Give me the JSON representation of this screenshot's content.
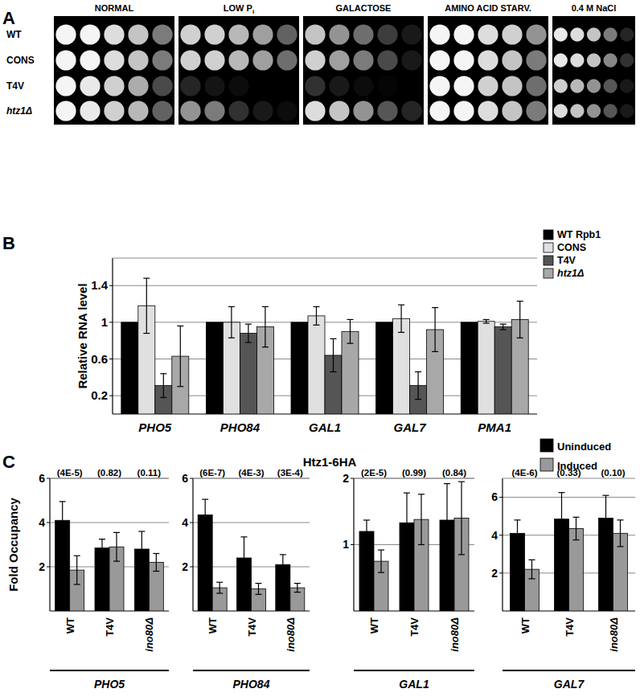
{
  "spot_assay": {
    "panel_label": "A",
    "conditions": [
      {
        "title": "NORMAL"
      },
      {
        "title": "LOW P",
        "subscript": "i"
      },
      {
        "title": "GALACTOSE"
      },
      {
        "title": "AMINO ACID STARV."
      },
      {
        "title": "0.4 M NaCl"
      }
    ],
    "strains": [
      "WT",
      "CONS",
      "T4V",
      "htz1Δ"
    ],
    "growth": [
      [
        [
          1,
          1,
          0.9,
          0.8,
          0.5
        ],
        [
          1,
          1,
          0.9,
          0.8,
          0.5
        ],
        [
          1,
          0.95,
          0.85,
          0.7,
          0.3
        ],
        [
          1,
          0.95,
          0.85,
          0.75,
          0.4
        ]
      ],
      [
        [
          0.85,
          0.85,
          0.75,
          0.65,
          0.4
        ],
        [
          0.85,
          0.85,
          0.75,
          0.65,
          0.45
        ],
        [
          0.15,
          0.08,
          0.05,
          0,
          0
        ],
        [
          0.6,
          0.5,
          0.2,
          0.1,
          0.05
        ]
      ],
      [
        [
          0.8,
          0.6,
          0.45,
          0.25,
          0.1
        ],
        [
          0.85,
          0.65,
          0.5,
          0.3,
          0.1
        ],
        [
          0.2,
          0.1,
          0.05,
          0.02,
          0
        ],
        [
          0.9,
          0.8,
          0.6,
          0.35,
          0.15
        ]
      ],
      [
        [
          1,
          1,
          0.9,
          0.85,
          0.6
        ],
        [
          1,
          1,
          0.9,
          0.8,
          0.5
        ],
        [
          1,
          1,
          0.85,
          0.8,
          0.45
        ],
        [
          1,
          1,
          0.9,
          0.8,
          0.5
        ]
      ],
      [
        [
          0.95,
          0.9,
          0.8,
          0.5,
          0.15
        ],
        [
          0.95,
          0.9,
          0.8,
          0.55,
          0.2
        ],
        [
          0.85,
          0.75,
          0.6,
          0.35,
          0.1
        ],
        [
          0.9,
          0.8,
          0.6,
          0.35,
          0.1
        ]
      ]
    ]
  },
  "chart_data": [
    {
      "type": "bar",
      "panel_label": "B",
      "y_label": "Relative RNA level",
      "categories": [
        "PHO5",
        "PHO84",
        "GAL1",
        "GAL7",
        "PMA1"
      ],
      "series": [
        {
          "name": "WT Rpb1",
          "color": "#000000",
          "values": [
            1.0,
            1.0,
            1.0,
            1.0,
            1.0
          ]
        },
        {
          "name": "CONS",
          "color": "#e0e0e0",
          "values": [
            1.18,
            1.0,
            1.07,
            1.04,
            1.01
          ],
          "errors": [
            0.3,
            0.17,
            0.1,
            0.15,
            0.02
          ]
        },
        {
          "name": "T4V",
          "color": "#555555",
          "values": [
            0.31,
            0.88,
            0.64,
            0.31,
            0.95
          ],
          "errors": [
            0.13,
            0.1,
            0.18,
            0.15,
            0.03
          ]
        },
        {
          "name": "htz1Δ",
          "color": "#a8a8a8",
          "values": [
            0.63,
            0.95,
            0.9,
            0.92,
            1.03
          ],
          "errors": [
            0.33,
            0.22,
            0.13,
            0.24,
            0.2
          ]
        }
      ],
      "ylim": [
        0,
        1.7
      ],
      "yticks": [
        0.2,
        0.6,
        1.0,
        1.4
      ],
      "grid": true,
      "legend": "upper right"
    },
    {
      "type": "bar",
      "panel_label": "C",
      "title": "Htz1-6HA",
      "y_label": "Fold Occupancy",
      "x_label": "PHO5",
      "categories": [
        "WT",
        "T4V",
        "ino80Δ"
      ],
      "annotations": [
        "(4E-5)",
        "(0.82)",
        "(0.11)"
      ],
      "series": [
        {
          "name": "Uninduced",
          "color": "#000000",
          "values": [
            4.1,
            2.85,
            2.8
          ],
          "errors": [
            0.85,
            0.4,
            0.8
          ]
        },
        {
          "name": "Induced",
          "color": "#999999",
          "values": [
            1.85,
            2.9,
            2.2
          ],
          "errors": [
            0.65,
            0.65,
            0.4
          ]
        }
      ],
      "ylim": [
        0,
        6
      ],
      "yticks": [
        2,
        4,
        6
      ],
      "grid": true,
      "legend": "upper right"
    },
    {
      "type": "bar",
      "x_label": "PHO84",
      "categories": [
        "WT",
        "T4V",
        "ino80Δ"
      ],
      "annotations": [
        "(6E-7)",
        "(4E-3)",
        "(3E-4)"
      ],
      "series": [
        {
          "name": "Uninduced",
          "color": "#000000",
          "values": [
            4.35,
            2.4,
            2.1
          ],
          "errors": [
            0.7,
            0.95,
            0.45
          ]
        },
        {
          "name": "Induced",
          "color": "#999999",
          "values": [
            1.05,
            1.0,
            1.05
          ],
          "errors": [
            0.25,
            0.25,
            0.2
          ]
        }
      ],
      "ylim": [
        0,
        6
      ],
      "yticks": [
        2,
        4,
        6
      ],
      "grid": true
    },
    {
      "type": "bar",
      "x_label": "GAL1",
      "categories": [
        "WT",
        "T4V",
        "ino80Δ"
      ],
      "annotations": [
        "(2E-5)",
        "(0.99)",
        "(0.84)"
      ],
      "series": [
        {
          "name": "Uninduced",
          "color": "#000000",
          "values": [
            1.2,
            1.33,
            1.37
          ],
          "errors": [
            0.17,
            0.45,
            0.55
          ]
        },
        {
          "name": "Induced",
          "color": "#999999",
          "values": [
            0.75,
            1.38,
            1.4
          ],
          "errors": [
            0.17,
            0.38,
            0.55
          ]
        }
      ],
      "ylim": [
        0,
        2
      ],
      "yticks": [
        1,
        2
      ],
      "grid": true
    },
    {
      "type": "bar",
      "x_label": "GAL7",
      "categories": [
        "WT",
        "T4V",
        "ino80Δ"
      ],
      "annotations": [
        "(4E-6)",
        "(0.33)",
        "(0.10)"
      ],
      "series": [
        {
          "name": "Uninduced",
          "color": "#000000",
          "values": [
            4.1,
            4.85,
            4.9
          ],
          "errors": [
            0.7,
            1.4,
            1.2
          ]
        },
        {
          "name": "Induced",
          "color": "#999999",
          "values": [
            2.2,
            4.35,
            4.1
          ],
          "errors": [
            0.5,
            0.6,
            0.7
          ]
        }
      ],
      "ylim": [
        0,
        7
      ],
      "yticks": [
        2,
        4,
        6
      ],
      "grid": true
    }
  ]
}
